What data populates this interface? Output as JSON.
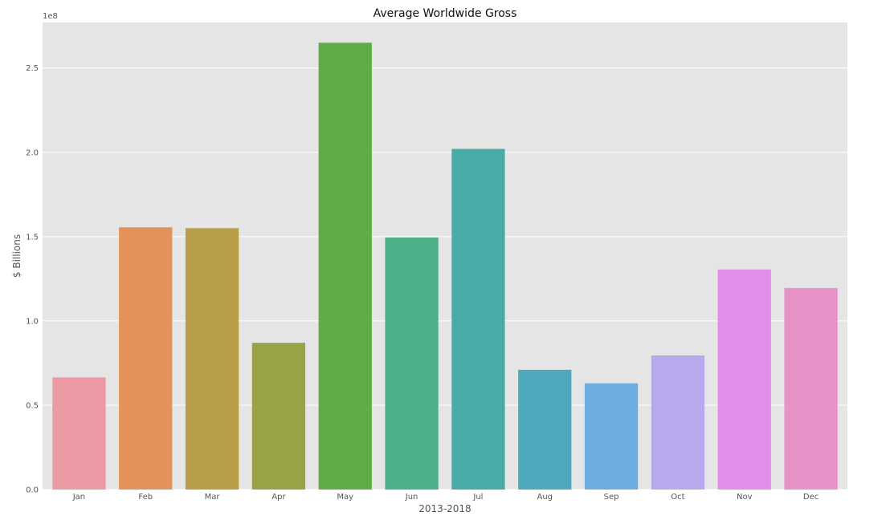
{
  "chart_data": {
    "type": "bar",
    "title": "Average Worldwide Gross",
    "xlabel": "2013-2018",
    "ylabel": "$ Billions",
    "scale_label": "1e8",
    "categories": [
      "Jan",
      "Feb",
      "Mar",
      "Apr",
      "May",
      "Jun",
      "Jul",
      "Aug",
      "Sep",
      "Oct",
      "Nov",
      "Dec"
    ],
    "values": [
      66500000,
      155500000,
      155000000,
      87000000,
      265000000,
      149500000,
      202000000,
      71000000,
      63000000,
      79500000,
      130500000,
      119500000
    ],
    "colors": [
      "#eb99a3",
      "#e3925a",
      "#b79c4a",
      "#99a244",
      "#60ad45",
      "#4caf88",
      "#4aaba6",
      "#4ea9bd",
      "#6daee2",
      "#b7a9ec",
      "#df8fe8",
      "#e992c8"
    ],
    "ylim": [
      0,
      277000000
    ],
    "yticks": [
      0,
      50000000,
      100000000,
      150000000,
      200000000,
      250000000
    ],
    "ytick_labels": [
      "0.0",
      "0.5",
      "1.0",
      "1.5",
      "2.0",
      "2.5"
    ],
    "grid": true,
    "background": "#e5e5e5"
  }
}
